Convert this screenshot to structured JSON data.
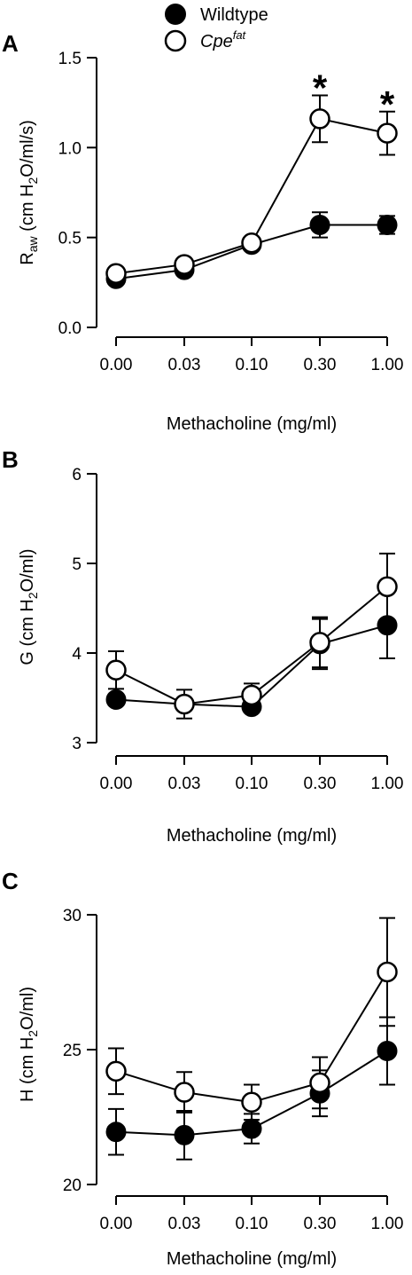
{
  "legend": {
    "wildtype": "Wildtype",
    "cpe_base": "Cpe",
    "cpe_sup": "fat"
  },
  "chart_data": [
    {
      "type": "line",
      "panel": "A",
      "categories": [
        "0.00",
        "0.03",
        "0.10",
        "0.30",
        "1.00"
      ],
      "xlabel": "Methacholine (mg/ml)",
      "ylabel": {
        "pre": "R",
        "sub": "aw",
        "mid": " (cm H",
        "sub2": "2",
        "post": "O/ml/s)"
      },
      "ylim": [
        0.0,
        1.5
      ],
      "yticks": [
        "0.0",
        "0.5",
        "1.0",
        "1.5"
      ],
      "series": [
        {
          "name": "Wildtype",
          "filled": true,
          "values": [
            0.27,
            0.32,
            0.46,
            0.57,
            0.57
          ],
          "err": [
            0.02,
            0.03,
            0.03,
            0.07,
            0.05
          ]
        },
        {
          "name": "Cpe fat",
          "filled": false,
          "values": [
            0.3,
            0.35,
            0.47,
            1.16,
            1.08
          ],
          "err": [
            0.03,
            0.03,
            0.03,
            0.13,
            0.12
          ]
        }
      ],
      "significance": [
        {
          "category": "0.30",
          "label": "*",
          "y": 1.29
        },
        {
          "category": "1.00",
          "label": "*",
          "y": 1.2
        }
      ]
    },
    {
      "type": "line",
      "panel": "B",
      "categories": [
        "0.00",
        "0.03",
        "0.10",
        "0.30",
        "1.00"
      ],
      "xlabel": "Methacholine (mg/ml)",
      "ylabel": {
        "pre": "G (cm H",
        "sub": "2",
        "post": "O/ml)"
      },
      "ylim": [
        3,
        6
      ],
      "yticks": [
        "3",
        "4",
        "5",
        "6"
      ],
      "series": [
        {
          "name": "Wildtype",
          "filled": true,
          "values": [
            3.48,
            3.43,
            3.4,
            4.1,
            4.31
          ],
          "err": [
            0.04,
            0.05,
            0.05,
            0.28,
            0.37
          ]
        },
        {
          "name": "Cpe fat",
          "filled": false,
          "values": [
            3.81,
            3.43,
            3.53,
            4.12,
            4.74
          ],
          "err": [
            0.21,
            0.16,
            0.13,
            0.28,
            0.37
          ]
        }
      ],
      "significance": []
    },
    {
      "type": "line",
      "panel": "C",
      "categories": [
        "0.00",
        "0.03",
        "0.10",
        "0.30",
        "1.00"
      ],
      "xlabel": "Methacholine (mg/ml)",
      "ylabel": {
        "pre": "H (cm H",
        "sub": "2",
        "post": "O/ml)"
      },
      "ylim": [
        20,
        30
      ],
      "yticks": [
        "20",
        "25",
        "30"
      ],
      "series": [
        {
          "name": "Wildtype",
          "filled": true,
          "values": [
            21.95,
            21.83,
            22.07,
            23.38,
            24.95
          ],
          "err": [
            0.85,
            0.9,
            0.55,
            0.85,
            1.25
          ]
        },
        {
          "name": "Cpe fat",
          "filled": false,
          "values": [
            24.2,
            23.42,
            23.05,
            23.77,
            27.88
          ],
          "err": [
            0.85,
            0.75,
            0.65,
            0.95,
            2.0
          ]
        }
      ],
      "significance": []
    }
  ]
}
